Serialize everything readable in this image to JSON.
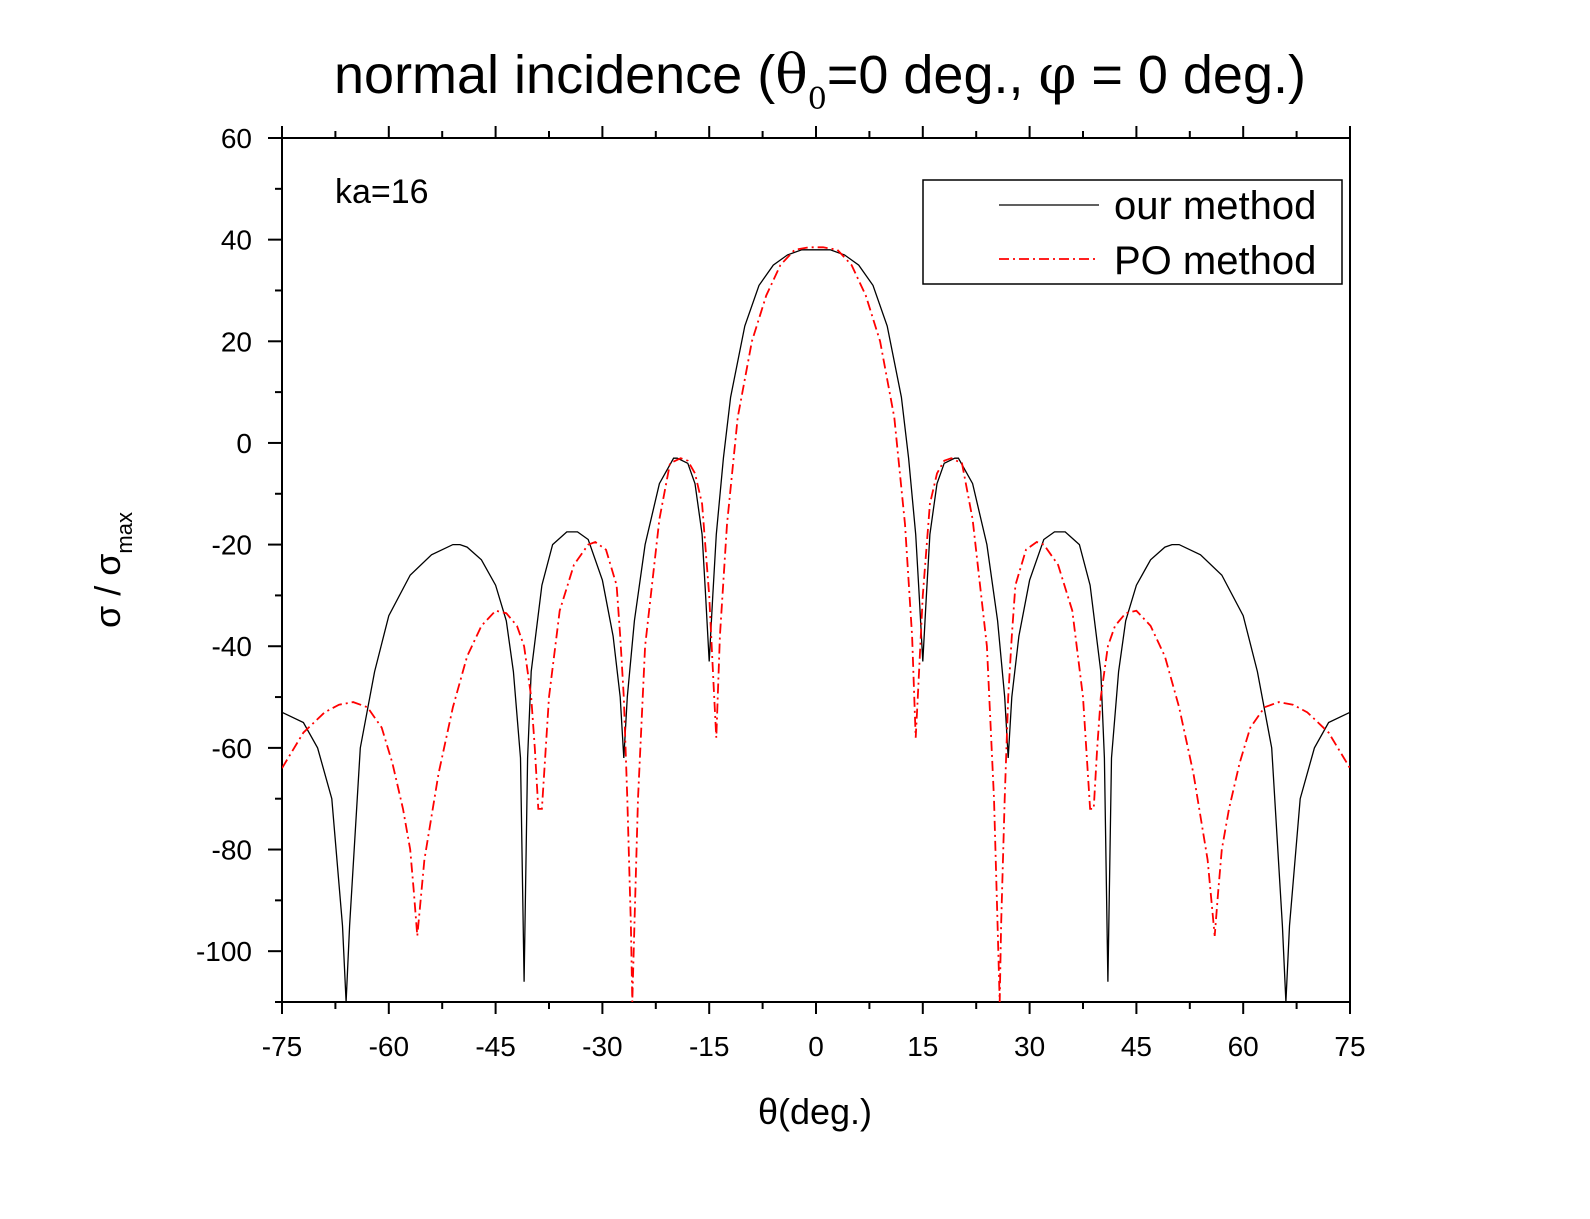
{
  "chart_data": {
    "type": "line",
    "title": {
      "prefix": "normal incidence (",
      "theta": "θ",
      "theta_sub": "0",
      "middle": "=0 deg., ",
      "phi": "φ",
      "suffix": " = 0 deg.)"
    },
    "xlabel": "θ(deg.)",
    "ylabel": {
      "main": "σ / σ",
      "sub": "max"
    },
    "annotation": "ka=16",
    "xlim": [
      -75,
      75
    ],
    "ylim": [
      -110,
      60
    ],
    "xticks": [
      -75,
      -60,
      -45,
      -30,
      -15,
      0,
      15,
      30,
      45,
      60,
      75
    ],
    "yticks": [
      60,
      40,
      20,
      0,
      -20,
      -40,
      -60,
      -80,
      -100
    ],
    "xtick_labels": [
      "-75",
      "-60",
      "-45",
      "-30",
      "-15",
      "0",
      "15",
      "30",
      "45",
      "60",
      "75"
    ],
    "ytick_labels": [
      "60",
      "40",
      "20",
      "0",
      "-20",
      "-40",
      "-60",
      "-80",
      "-100"
    ],
    "grid": false,
    "legend_position": "top-right",
    "series": [
      {
        "name": "our method",
        "color": "#000000",
        "style": "solid",
        "x": [
          -75,
          -72,
          -70,
          -68,
          -66.5,
          -66,
          -65.5,
          -64,
          -62,
          -60,
          -57,
          -54,
          -51,
          -50,
          -49,
          -47,
          -45,
          -43.5,
          -42.5,
          -41.5,
          -41,
          -40.5,
          -40,
          -38.5,
          -37,
          -35,
          -33.5,
          -32,
          -30,
          -28.5,
          -27.5,
          -27,
          -26.5,
          -25.5,
          -24,
          -22,
          -20,
          -19.5,
          -18,
          -17,
          -16,
          -15.5,
          -15,
          -14.5,
          -14,
          -13,
          -12,
          -10,
          -8,
          -6,
          -4,
          -2,
          0,
          2,
          4,
          6,
          8,
          10,
          12,
          13,
          14,
          14.5,
          15,
          15.5,
          16,
          17,
          18,
          19.5,
          20,
          22,
          24,
          25.5,
          26.5,
          27,
          27.5,
          28.5,
          30,
          32,
          33.5,
          35,
          37,
          38.5,
          40,
          40.5,
          41,
          41.5,
          42.5,
          43.5,
          45,
          47,
          49,
          50,
          51,
          54,
          57,
          60,
          62,
          64,
          65.5,
          66,
          66.5,
          68,
          70,
          72,
          75
        ],
        "y": [
          -53,
          -55,
          -60,
          -70,
          -95,
          -110,
          -95,
          -60,
          -45,
          -34,
          -26,
          -22,
          -20,
          -20,
          -20.5,
          -23,
          -28,
          -35,
          -45,
          -62,
          -106,
          -62,
          -45,
          -28,
          -20,
          -17.5,
          -17.5,
          -19,
          -27,
          -38,
          -50,
          -62,
          -50,
          -35,
          -20,
          -8,
          -3,
          -3,
          -4,
          -8,
          -18,
          -30,
          -43,
          -30,
          -18,
          -3,
          9,
          23,
          31,
          35,
          37,
          38,
          38,
          38,
          37,
          35,
          31,
          23,
          9,
          -3,
          -18,
          -30,
          -43,
          -30,
          -18,
          -8,
          -4,
          -3,
          -3,
          -8,
          -20,
          -35,
          -50,
          -62,
          -50,
          -38,
          -27,
          -19,
          -17.5,
          -17.5,
          -20,
          -28,
          -45,
          -62,
          -106,
          -62,
          -45,
          -35,
          -28,
          -23,
          -20.5,
          -20,
          -20,
          -22,
          -26,
          -34,
          -45,
          -60,
          -95,
          -110,
          -95,
          -70,
          -60,
          -55,
          -53
        ]
      },
      {
        "name": "PO method",
        "color": "#ff0000",
        "style": "dashdot",
        "x": [
          -75,
          -72,
          -69,
          -67,
          -65,
          -63,
          -61,
          -59.5,
          -58,
          -57,
          -56.5,
          -56,
          -55,
          -53,
          -51,
          -49,
          -47,
          -45,
          -43.5,
          -42,
          -41,
          -40,
          -39.5,
          -39,
          -38.5,
          -37.5,
          -36,
          -34,
          -32,
          -31,
          -29.5,
          -28,
          -27.5,
          -27,
          -26.5,
          -26,
          -25.8,
          -25.5,
          -25,
          -24,
          -22,
          -20.5,
          -19,
          -18,
          -17,
          -16,
          -15,
          -14.3,
          -14,
          -13.5,
          -12.5,
          -11,
          -9,
          -7,
          -5,
          -3,
          -1,
          0,
          1,
          3,
          5,
          7,
          9,
          11,
          12.5,
          13.5,
          14,
          14.3,
          15,
          16,
          17,
          18,
          19,
          20.5,
          22,
          24,
          25,
          25.5,
          25.8,
          26,
          26.5,
          27,
          27.5,
          28,
          29.5,
          31,
          32,
          34,
          36,
          37.5,
          38.5,
          39,
          39.5,
          40,
          41,
          42,
          43.5,
          45,
          47,
          49,
          51,
          53,
          55,
          56,
          56.5,
          57,
          58,
          59.5,
          61,
          63,
          65,
          67,
          69,
          72,
          75
        ],
        "y": [
          -64,
          -57,
          -53,
          -51.5,
          -51,
          -52,
          -56,
          -63,
          -72,
          -80,
          -88,
          -97,
          -82,
          -65,
          -52,
          -42,
          -36,
          -33,
          -33.5,
          -36,
          -40,
          -50,
          -60,
          -72,
          -72,
          -50,
          -33,
          -24,
          -20,
          -19.5,
          -21,
          -28,
          -38,
          -50,
          -70,
          -95,
          -110,
          -95,
          -70,
          -40,
          -15,
          -4,
          -3,
          -3.5,
          -6,
          -12,
          -30,
          -50,
          -58,
          -38,
          -16,
          5,
          20,
          29,
          35,
          38,
          38.5,
          38.5,
          38.5,
          38,
          35,
          29,
          20,
          5,
          -16,
          -38,
          -58,
          -50,
          -30,
          -12,
          -6,
          -3.5,
          -3,
          -4,
          -15,
          -40,
          -70,
          -95,
          -110,
          -95,
          -70,
          -50,
          -38,
          -28,
          -21,
          -19.5,
          -20,
          -24,
          -33,
          -50,
          -72,
          -72,
          -60,
          -50,
          -40,
          -36,
          -33.5,
          -33,
          -36,
          -42,
          -52,
          -65,
          -82,
          -97,
          -88,
          -80,
          -72,
          -63,
          -56,
          -52,
          -51,
          -51.5,
          -53,
          -57,
          -64
        ]
      }
    ]
  }
}
